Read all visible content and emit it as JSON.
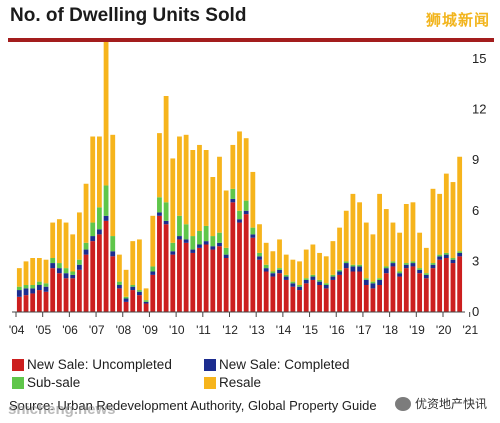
{
  "chart_data": {
    "type": "bar",
    "stacked": true,
    "title": "No. of Dwelling Units Sold",
    "xlabel": "",
    "ylabel": "",
    "ylim": [
      0,
      16
    ],
    "y_ticks": [
      0,
      3,
      6,
      9,
      12,
      15
    ],
    "x_tick_labels": [
      "'04",
      "'05",
      "'06",
      "'07",
      "'08",
      "'09",
      "'10",
      "'11",
      "'12",
      "'13",
      "'14",
      "'15",
      "'16",
      "'17",
      "'18",
      "'19",
      "'20",
      "'21"
    ],
    "legend_position": "bottom",
    "grid": false,
    "quarters_per_year": 4,
    "series": [
      {
        "name": "New Sale: Uncompleted",
        "color": "#cc1f1f",
        "values": [
          0.9,
          1.0,
          1.1,
          1.3,
          1.2,
          2.6,
          2.3,
          2.0,
          2.0,
          2.5,
          3.4,
          4.2,
          4.6,
          5.4,
          3.3,
          1.4,
          0.6,
          1.3,
          1.0,
          0.5,
          2.2,
          5.7,
          5.2,
          3.4,
          4.3,
          4.1,
          3.5,
          3.8,
          4.0,
          3.7,
          3.9,
          3.2,
          6.5,
          5.3,
          5.8,
          4.4,
          3.1,
          2.4,
          2.1,
          2.3,
          1.9,
          1.5,
          1.3,
          1.7,
          1.9,
          1.6,
          1.4,
          1.9,
          2.2,
          2.6,
          2.4,
          2.4,
          1.6,
          1.4,
          1.6,
          2.3,
          2.7,
          2.1,
          2.6,
          2.7,
          2.3,
          2.0,
          2.6,
          3.1,
          3.2,
          2.9,
          3.3
        ]
      },
      {
        "name": "New Sale: Completed",
        "color": "#1c2c8f",
        "values": [
          0.4,
          0.4,
          0.3,
          0.3,
          0.3,
          0.3,
          0.3,
          0.3,
          0.2,
          0.3,
          0.3,
          0.3,
          0.3,
          0.3,
          0.3,
          0.2,
          0.2,
          0.2,
          0.2,
          0.1,
          0.2,
          0.2,
          0.2,
          0.2,
          0.2,
          0.2,
          0.2,
          0.2,
          0.2,
          0.2,
          0.2,
          0.2,
          0.2,
          0.2,
          0.2,
          0.2,
          0.2,
          0.2,
          0.2,
          0.2,
          0.2,
          0.2,
          0.2,
          0.2,
          0.2,
          0.2,
          0.2,
          0.2,
          0.2,
          0.3,
          0.3,
          0.3,
          0.3,
          0.3,
          0.3,
          0.3,
          0.2,
          0.2,
          0.2,
          0.2,
          0.2,
          0.2,
          0.2,
          0.2,
          0.2,
          0.2,
          0.2
        ]
      },
      {
        "name": "Sub-sale",
        "color": "#5fc64a",
        "values": [
          0.2,
          0.2,
          0.2,
          0.2,
          0.2,
          0.3,
          0.3,
          0.3,
          0.2,
          0.3,
          0.4,
          0.8,
          1.3,
          1.8,
          0.9,
          0.2,
          0.1,
          0.1,
          0.1,
          0.1,
          0.3,
          0.9,
          1.1,
          0.5,
          1.2,
          0.9,
          0.8,
          0.8,
          0.9,
          0.6,
          0.6,
          0.4,
          0.6,
          0.5,
          0.6,
          0.4,
          0.2,
          0.2,
          0.1,
          0.1,
          0.1,
          0.1,
          0.1,
          0.1,
          0.1,
          0.1,
          0.1,
          0.1,
          0.1,
          0.1,
          0.1,
          0.1,
          0.1,
          0.1,
          0.1,
          0.1,
          0.1,
          0.1,
          0.1,
          0.1,
          0.1,
          0.1,
          0.1,
          0.1,
          0.1,
          0.1,
          0.1
        ]
      },
      {
        "name": "Resale",
        "color": "#f6b41c",
        "values": [
          1.1,
          1.4,
          1.6,
          1.4,
          1.4,
          2.1,
          2.6,
          2.7,
          2.2,
          2.8,
          3.5,
          5.1,
          4.2,
          8.6,
          6.0,
          1.6,
          1.6,
          2.6,
          3.0,
          0.7,
          3.0,
          3.8,
          6.3,
          5.0,
          4.7,
          5.3,
          5.1,
          5.1,
          4.5,
          3.5,
          4.5,
          3.4,
          2.6,
          4.7,
          3.7,
          3.3,
          1.7,
          1.3,
          1.2,
          1.7,
          1.2,
          1.3,
          1.4,
          1.7,
          1.8,
          1.6,
          1.6,
          2.0,
          2.5,
          3.0,
          4.2,
          3.7,
          3.3,
          2.8,
          5.0,
          3.4,
          2.3,
          2.3,
          3.5,
          3.5,
          2.1,
          1.5,
          4.4,
          3.6,
          4.7,
          4.5,
          5.6
        ]
      }
    ]
  },
  "legend": [
    {
      "label": "New Sale: Uncompleted",
      "color": "#cc1f1f"
    },
    {
      "label": "New Sale: Completed",
      "color": "#1c2c8f"
    },
    {
      "label": "Sub-sale",
      "color": "#5fc64a"
    },
    {
      "label": "Resale",
      "color": "#f6b41c"
    }
  ],
  "source_text": "Source: Urban Redevelopment Authority, Global Property Guide",
  "watermarks": {
    "top_right": "狮城新闻",
    "bottom_left": "shicheng.news",
    "bottom_right": "优资地产快讯"
  },
  "colors": {
    "title_rule": "#a31d1d",
    "axis": "#444444"
  }
}
